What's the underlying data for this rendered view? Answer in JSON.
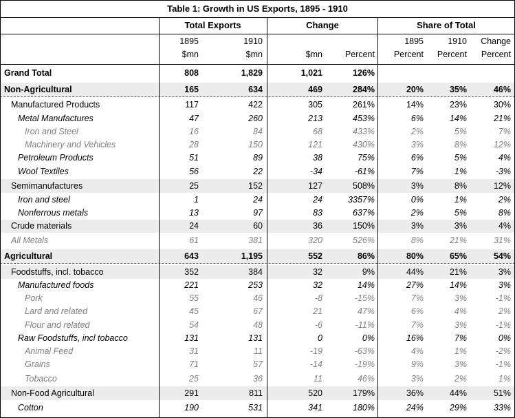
{
  "title": "Table 1: Growth in US Exports, 1895 - 1910",
  "groups": {
    "total_exports": "Total Exports",
    "change": "Change",
    "share_of_total": "Share of Total"
  },
  "headers": {
    "c1895_year": "1895",
    "c1895_unit": "$mn",
    "c1910_year": "1910",
    "c1910_unit": "$mn",
    "chg_mn": "$mn",
    "chg_pct": "Percent",
    "s1895_year": "1895",
    "s1895_unit": "Percent",
    "s1910_year": "1910",
    "s1910_unit": "Percent",
    "schg_top": "Change",
    "schg_unit": "Percent"
  },
  "rows": [
    {
      "label": "Grand Total",
      "style": "bold",
      "v": [
        "808",
        "1,829",
        "1,021",
        "126%",
        "",
        "",
        ""
      ]
    },
    {
      "label": "Non-Agricultural",
      "style": "bold",
      "v": [
        "165",
        "634",
        "469",
        "284%",
        "20%",
        "35%",
        "46%"
      ]
    },
    {
      "label": "Manufactured Products",
      "style": "normal",
      "v": [
        "117",
        "422",
        "305",
        "261%",
        "14%",
        "23%",
        "30%"
      ]
    },
    {
      "label": "Metal Manufactures",
      "style": "italic",
      "v": [
        "47",
        "260",
        "213",
        "453%",
        "6%",
        "14%",
        "21%"
      ]
    },
    {
      "label": "Iron and Steel",
      "style": "gray",
      "v": [
        "16",
        "84",
        "68",
        "433%",
        "2%",
        "5%",
        "7%"
      ]
    },
    {
      "label": "Machinery and Vehicles",
      "style": "gray",
      "v": [
        "28",
        "150",
        "121",
        "430%",
        "3%",
        "8%",
        "12%"
      ]
    },
    {
      "label": "Petroleum Products",
      "style": "italic",
      "v": [
        "51",
        "89",
        "38",
        "75%",
        "6%",
        "5%",
        "4%"
      ]
    },
    {
      "label": "Wool Textiles",
      "style": "italic",
      "v": [
        "56",
        "22",
        "-34",
        "-61%",
        "7%",
        "1%",
        "-3%"
      ]
    },
    {
      "label": "Semimanufactures",
      "style": "normal",
      "v": [
        "25",
        "152",
        "127",
        "508%",
        "3%",
        "8%",
        "12%"
      ]
    },
    {
      "label": "Iron and steel",
      "style": "italic",
      "v": [
        "1",
        "24",
        "24",
        "3357%",
        "0%",
        "1%",
        "2%"
      ]
    },
    {
      "label": "Nonferrous metals",
      "style": "italic",
      "v": [
        "13",
        "97",
        "83",
        "637%",
        "2%",
        "5%",
        "8%"
      ]
    },
    {
      "label": "Crude materials",
      "style": "normal",
      "v": [
        "24",
        "60",
        "36",
        "150%",
        "3%",
        "3%",
        "4%"
      ]
    },
    {
      "label": "All Metals",
      "style": "gray",
      "v": [
        "61",
        "381",
        "320",
        "526%",
        "8%",
        "21%",
        "31%"
      ]
    },
    {
      "label": "Agricultural",
      "style": "bold",
      "v": [
        "643",
        "1,195",
        "552",
        "86%",
        "80%",
        "65%",
        "54%"
      ]
    },
    {
      "label": "Foodstuffs, incl. tobacco",
      "style": "normal",
      "v": [
        "352",
        "384",
        "32",
        "9%",
        "44%",
        "21%",
        "3%"
      ]
    },
    {
      "label": "Manufactured foods",
      "style": "italic",
      "v": [
        "221",
        "253",
        "32",
        "14%",
        "27%",
        "14%",
        "3%"
      ]
    },
    {
      "label": "Pork",
      "style": "gray",
      "v": [
        "55",
        "46",
        "-8",
        "-15%",
        "7%",
        "3%",
        "-1%"
      ]
    },
    {
      "label": "Lard and related",
      "style": "gray",
      "v": [
        "45",
        "67",
        "21",
        "47%",
        "6%",
        "4%",
        "2%"
      ]
    },
    {
      "label": "Flour and related",
      "style": "gray",
      "v": [
        "54",
        "48",
        "-6",
        "-11%",
        "7%",
        "3%",
        "-1%"
      ]
    },
    {
      "label": "Raw Foodstuffs, incl tobacco",
      "style": "italic",
      "v": [
        "131",
        "131",
        "0",
        "0%",
        "16%",
        "7%",
        "0%"
      ]
    },
    {
      "label": "Animal Feed",
      "style": "gray",
      "v": [
        "31",
        "11",
        "-19",
        "-63%",
        "4%",
        "1%",
        "-2%"
      ]
    },
    {
      "label": "Grains",
      "style": "gray",
      "v": [
        "71",
        "57",
        "-14",
        "-19%",
        "9%",
        "3%",
        "-1%"
      ]
    },
    {
      "label": "Tobacco",
      "style": "gray",
      "v": [
        "25",
        "36",
        "11",
        "46%",
        "3%",
        "2%",
        "1%"
      ]
    },
    {
      "label": "Non-Food Agricultural",
      "style": "normal",
      "v": [
        "291",
        "811",
        "520",
        "179%",
        "36%",
        "44%",
        "51%"
      ]
    },
    {
      "label": "Cotton",
      "style": "italic",
      "v": [
        "190",
        "531",
        "341",
        "180%",
        "24%",
        "29%",
        "33%"
      ]
    }
  ]
}
